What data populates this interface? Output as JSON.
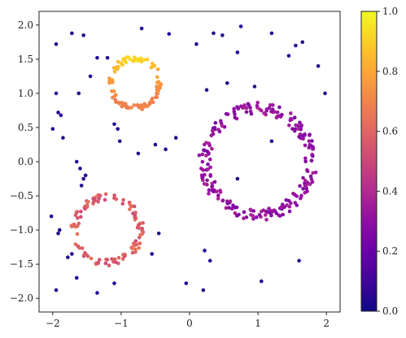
{
  "chart_data": {
    "type": "scatter",
    "title": "",
    "xlabel": "",
    "ylabel": "",
    "xlim": [
      -2.2,
      2.2
    ],
    "ylim": [
      -2.2,
      2.2
    ],
    "x_ticks": [
      -2,
      -1,
      0,
      1,
      2
    ],
    "x_tick_labels": [
      "−2",
      "−1",
      "0",
      "1",
      "2"
    ],
    "y_ticks": [
      -2.0,
      -1.5,
      -1.0,
      -0.5,
      0.0,
      0.5,
      1.0,
      1.5,
      2.0
    ],
    "y_tick_labels": [
      "−2.0",
      "−1.5",
      "−1.0",
      "−0.5",
      "0.0",
      "0.5",
      "1.0",
      "1.5",
      "2.0"
    ],
    "grid": false,
    "colormap": "plasma",
    "colorbar": {
      "range": [
        0.0,
        1.0
      ],
      "ticks": [
        0.0,
        0.2,
        0.4,
        0.6,
        0.8,
        1.0
      ],
      "tick_labels": [
        "0.0",
        "0.2",
        "0.4",
        "0.6",
        "0.8",
        "1.0"
      ]
    },
    "clusters": [
      {
        "shape": "ring",
        "center": [
          -0.8,
          1.15
        ],
        "radius": 0.36,
        "count": 110,
        "value_range": [
          0.62,
          0.92
        ]
      },
      {
        "shape": "ring",
        "center": [
          -1.2,
          -1.0
        ],
        "radius": 0.48,
        "count": 110,
        "value_range": [
          0.5,
          0.65
        ]
      },
      {
        "shape": "ring",
        "center": [
          1.0,
          0.0
        ],
        "radius": 0.78,
        "count": 230,
        "value_range": [
          0.25,
          0.38
        ]
      }
    ],
    "scattered_points": [
      {
        "x": -1.72,
        "y": 1.88,
        "value": 0.05
      },
      {
        "x": -1.55,
        "y": 1.85,
        "value": 0.05
      },
      {
        "x": -1.95,
        "y": 1.72,
        "value": 0.05
      },
      {
        "x": -0.7,
        "y": 1.95,
        "value": 0.05
      },
      {
        "x": -0.3,
        "y": 1.87,
        "value": 0.05
      },
      {
        "x": 0.1,
        "y": 1.72,
        "value": 0.05
      },
      {
        "x": 0.35,
        "y": 1.88,
        "value": 0.05
      },
      {
        "x": 0.48,
        "y": 1.85,
        "value": 0.05
      },
      {
        "x": 0.75,
        "y": 1.98,
        "value": 0.05
      },
      {
        "x": 1.2,
        "y": 1.88,
        "value": 0.05
      },
      {
        "x": 1.65,
        "y": 1.75,
        "value": 0.05
      },
      {
        "x": -1.35,
        "y": 1.52,
        "value": 0.05
      },
      {
        "x": -1.2,
        "y": 1.52,
        "value": 0.05
      },
      {
        "x": -1.45,
        "y": 1.25,
        "value": 0.05
      },
      {
        "x": -1.95,
        "y": 1.0,
        "value": 0.05
      },
      {
        "x": -1.62,
        "y": 1.0,
        "value": 0.05
      },
      {
        "x": -1.92,
        "y": 0.72,
        "value": 0.05
      },
      {
        "x": -1.88,
        "y": 0.68,
        "value": 0.05
      },
      {
        "x": -2.0,
        "y": 0.48,
        "value": 0.05
      },
      {
        "x": -1.85,
        "y": 0.35,
        "value": 0.05
      },
      {
        "x": -1.65,
        "y": 0.0,
        "value": 0.05
      },
      {
        "x": -1.6,
        "y": -0.1,
        "value": 0.05
      },
      {
        "x": -1.52,
        "y": -0.2,
        "value": 0.05
      },
      {
        "x": -1.55,
        "y": -0.25,
        "value": 0.05
      },
      {
        "x": -1.58,
        "y": -0.35,
        "value": 0.05
      },
      {
        "x": -1.1,
        "y": 0.55,
        "value": 0.05
      },
      {
        "x": -1.05,
        "y": 0.48,
        "value": 0.05
      },
      {
        "x": -1.02,
        "y": 0.3,
        "value": 0.05
      },
      {
        "x": -0.75,
        "y": 0.12,
        "value": 0.05
      },
      {
        "x": -0.35,
        "y": 0.18,
        "value": 0.05
      },
      {
        "x": -0.2,
        "y": 0.35,
        "value": 0.05
      },
      {
        "x": -0.5,
        "y": 0.25,
        "value": 0.05
      },
      {
        "x": 0.55,
        "y": 1.15,
        "value": 0.05
      },
      {
        "x": 0.25,
        "y": 1.05,
        "value": 0.05
      },
      {
        "x": 0.95,
        "y": 1.1,
        "value": 0.05
      },
      {
        "x": 1.45,
        "y": 1.55,
        "value": 0.05
      },
      {
        "x": 1.55,
        "y": 1.7,
        "value": 0.05
      },
      {
        "x": 1.88,
        "y": 1.4,
        "value": 0.05
      },
      {
        "x": 1.98,
        "y": 1.0,
        "value": 0.05
      },
      {
        "x": 0.7,
        "y": 1.6,
        "value": 0.05
      },
      {
        "x": -2.02,
        "y": -0.8,
        "value": 0.05
      },
      {
        "x": -1.92,
        "y": -1.05,
        "value": 0.05
      },
      {
        "x": -1.9,
        "y": -1.0,
        "value": 0.05
      },
      {
        "x": -1.78,
        "y": -1.4,
        "value": 0.05
      },
      {
        "x": -1.72,
        "y": -1.35,
        "value": 0.05
      },
      {
        "x": -1.65,
        "y": -1.7,
        "value": 0.05
      },
      {
        "x": -1.95,
        "y": -1.88,
        "value": 0.05
      },
      {
        "x": -1.35,
        "y": -1.92,
        "value": 0.05
      },
      {
        "x": -1.1,
        "y": -1.78,
        "value": 0.05
      },
      {
        "x": -0.45,
        "y": -1.05,
        "value": 0.05
      },
      {
        "x": -0.55,
        "y": -1.35,
        "value": 0.05
      },
      {
        "x": -0.05,
        "y": -1.78,
        "value": 0.05
      },
      {
        "x": 0.2,
        "y": -1.88,
        "value": 0.05
      },
      {
        "x": 0.3,
        "y": -1.45,
        "value": 0.05
      },
      {
        "x": 0.22,
        "y": -1.3,
        "value": 0.05
      },
      {
        "x": 1.05,
        "y": -1.75,
        "value": 0.05
      },
      {
        "x": 1.6,
        "y": -1.45,
        "value": 0.05
      },
      {
        "x": 0.7,
        "y": -0.25,
        "value": 0.05
      },
      {
        "x": 1.2,
        "y": 0.3,
        "value": 0.05
      }
    ]
  }
}
